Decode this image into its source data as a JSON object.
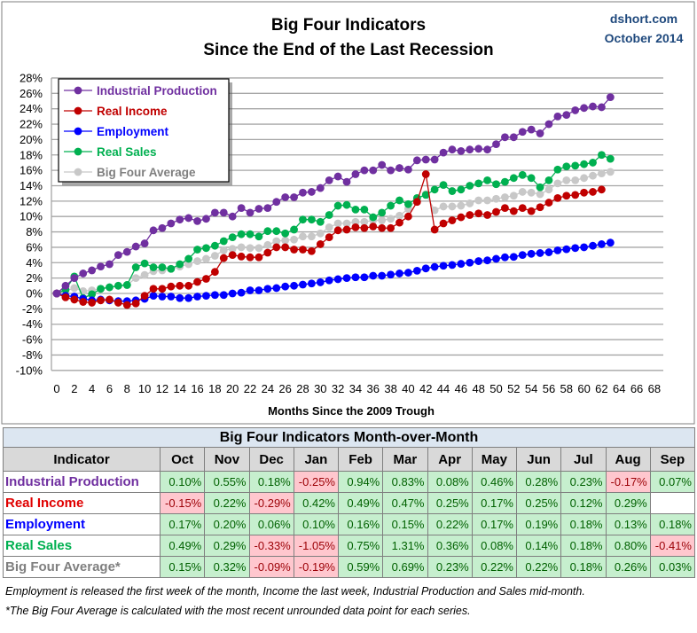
{
  "header": {
    "title_line1": "Big Four Indicators",
    "title_line2": "Since the End of the Last Recession",
    "source": "dshort.com",
    "date": "October 2014"
  },
  "colors": {
    "industrial_production": "#7030a0",
    "real_income": "#c00000",
    "employment": "#0000ff",
    "real_sales": "#00b050",
    "big_four_average": "#c8c8c8"
  },
  "chart_data": {
    "type": "line",
    "title": "Big Four Indicators Since the End of the Last Recession",
    "xlabel": "Months Since the 2009 Trough",
    "ylabel": "",
    "xlim": [
      0,
      68
    ],
    "ylim": [
      -10,
      28
    ],
    "x_ticks": [
      "0",
      "2",
      "4",
      "6",
      "8",
      "10",
      "12",
      "14",
      "16",
      "18",
      "20",
      "22",
      "24",
      "26",
      "28",
      "30",
      "32",
      "34",
      "36",
      "38",
      "40",
      "42",
      "44",
      "46",
      "48",
      "50",
      "52",
      "54",
      "56",
      "58",
      "60",
      "62",
      "64",
      "66",
      "68"
    ],
    "y_ticks": [
      "28%",
      "26%",
      "24%",
      "22%",
      "20%",
      "18%",
      "16%",
      "14%",
      "12%",
      "10%",
      "8%",
      "6%",
      "4%",
      "2%",
      "0%",
      "-2%",
      "-4%",
      "-6%",
      "-8%",
      "-10%"
    ],
    "grid": true,
    "legend_position": "top-left",
    "series": [
      {
        "name": "Industrial Production",
        "key": "industrial_production",
        "values": [
          0,
          1.0,
          2.0,
          2.6,
          3.0,
          3.5,
          3.8,
          5.0,
          5.4,
          6.1,
          6.5,
          8.2,
          8.5,
          9.1,
          9.6,
          9.8,
          9.4,
          9.7,
          10.5,
          10.5,
          10.0,
          11.1,
          10.5,
          11.0,
          11.1,
          11.9,
          12.5,
          12.5,
          13.1,
          13.2,
          13.7,
          14.7,
          15.2,
          14.5,
          15.5,
          16.0,
          16.0,
          16.7,
          16.0,
          16.3,
          16.1,
          17.3,
          17.4,
          17.4,
          18.3,
          18.7,
          18.5,
          18.7,
          18.8,
          18.7,
          19.4,
          20.3,
          20.3,
          21.0,
          21.3,
          20.8,
          22.0,
          23.0,
          23.2,
          23.8,
          24.1,
          24.3,
          24.2,
          25.5
        ]
      },
      {
        "name": "Real Income",
        "key": "real_income",
        "values": [
          0,
          -0.5,
          -0.8,
          -1.1,
          -1.2,
          -0.9,
          -0.8,
          -1.2,
          -1.5,
          -1.3,
          -0.3,
          0.6,
          0.6,
          0.9,
          1.0,
          1.0,
          1.5,
          1.9,
          2.8,
          4.6,
          5.0,
          4.8,
          4.7,
          4.7,
          5.3,
          6.0,
          6.0,
          5.7,
          5.7,
          5.5,
          6.4,
          7.3,
          8.2,
          8.3,
          8.6,
          8.5,
          8.7,
          8.5,
          8.5,
          9.2,
          10.0,
          11.9,
          15.5,
          8.3,
          9.1,
          9.5,
          9.9,
          10.2,
          10.4,
          10.2,
          10.6,
          11.1,
          10.7,
          11.1,
          10.7,
          11.2,
          11.8,
          12.4,
          12.7,
          12.8,
          13.1,
          13.2,
          13.5
        ]
      },
      {
        "name": "Employment",
        "key": "employment",
        "values": [
          0,
          -0.3,
          -0.4,
          -0.7,
          -0.9,
          -0.8,
          -0.9,
          -1.0,
          -1.0,
          -0.9,
          -0.7,
          -0.3,
          -0.4,
          -0.4,
          -0.6,
          -0.6,
          -0.4,
          -0.3,
          -0.2,
          -0.2,
          0.0,
          0.1,
          0.4,
          0.4,
          0.6,
          0.7,
          0.9,
          1.0,
          1.15,
          1.3,
          1.45,
          1.7,
          1.85,
          2.0,
          2.1,
          2.1,
          2.3,
          2.3,
          2.45,
          2.6,
          2.7,
          2.95,
          3.25,
          3.45,
          3.6,
          3.7,
          3.85,
          4.0,
          4.2,
          4.3,
          4.5,
          4.7,
          4.75,
          5.0,
          5.15,
          5.25,
          5.35,
          5.6,
          5.75,
          5.9,
          6.0,
          6.2,
          6.4,
          6.6
        ]
      },
      {
        "name": "Real Sales",
        "key": "real_sales",
        "values": [
          0,
          0.5,
          2.2,
          -0.6,
          -0.1,
          0.6,
          0.8,
          1.0,
          1.1,
          3.4,
          3.9,
          3.4,
          3.4,
          3.2,
          3.8,
          4.5,
          5.7,
          5.9,
          6.2,
          6.8,
          7.3,
          7.7,
          7.7,
          7.4,
          8.1,
          8.1,
          7.8,
          8.3,
          9.6,
          9.6,
          9.3,
          10.2,
          11.4,
          11.5,
          10.9,
          10.9,
          9.9,
          10.5,
          11.4,
          12.1,
          11.6,
          12.4,
          12.8,
          13.5,
          14.1,
          13.3,
          13.5,
          14.0,
          14.3,
          14.7,
          14.2,
          14.5,
          15.0,
          15.4,
          15.0,
          13.8,
          14.7,
          16.1,
          16.5,
          16.6,
          16.8,
          17.0,
          18.0,
          17.5
        ]
      },
      {
        "name": "Big Four Average",
        "key": "big_four_average",
        "values": [
          0,
          0.3,
          0.7,
          0.3,
          0.4,
          0.6,
          0.8,
          1.0,
          1.1,
          2.0,
          2.4,
          2.9,
          3.0,
          3.2,
          3.5,
          3.8,
          4.2,
          4.5,
          4.9,
          5.6,
          5.8,
          6.0,
          5.9,
          5.9,
          6.3,
          6.8,
          6.9,
          7.0,
          7.4,
          7.4,
          7.8,
          8.6,
          9.1,
          9.1,
          9.3,
          9.3,
          9.5,
          9.5,
          9.7,
          10.1,
          11.0,
          12.3,
          12.9,
          10.8,
          11.3,
          11.3,
          11.4,
          11.7,
          12.1,
          12.1,
          12.3,
          12.5,
          12.7,
          13.2,
          13.1,
          12.9,
          13.5,
          14.3,
          14.7,
          14.7,
          15.0,
          15.3,
          15.6,
          15.8
        ]
      }
    ]
  },
  "table": {
    "title": "Big Four Indicators Month-over-Month",
    "header": [
      "Indicator",
      "Oct",
      "Nov",
      "Dec",
      "Jan",
      "Feb",
      "Mar",
      "Apr",
      "May",
      "Jun",
      "Jul",
      "Aug",
      "Sep"
    ],
    "rows": [
      {
        "name": "Industrial Production",
        "color": "#7030a0",
        "values": [
          "0.10%",
          "0.55%",
          "0.18%",
          "-0.25%",
          "0.94%",
          "0.83%",
          "0.08%",
          "0.46%",
          "0.28%",
          "0.23%",
          "-0.17%",
          "0.07%"
        ]
      },
      {
        "name": "Real Income",
        "color": "#e00000",
        "values": [
          "-0.15%",
          "0.22%",
          "-0.29%",
          "0.42%",
          "0.49%",
          "0.47%",
          "0.25%",
          "0.17%",
          "0.25%",
          "0.12%",
          "0.29%",
          ""
        ]
      },
      {
        "name": "Employment",
        "color": "#0000ff",
        "values": [
          "0.17%",
          "0.20%",
          "0.06%",
          "0.10%",
          "0.16%",
          "0.15%",
          "0.22%",
          "0.17%",
          "0.19%",
          "0.18%",
          "0.13%",
          "0.18%"
        ]
      },
      {
        "name": "Real Sales",
        "color": "#00b050",
        "values": [
          "0.49%",
          "0.29%",
          "-0.33%",
          "-1.05%",
          "0.75%",
          "1.31%",
          "0.36%",
          "0.08%",
          "0.14%",
          "0.18%",
          "0.80%",
          "-0.41%"
        ]
      },
      {
        "name": "Big Four Average*",
        "color": "#7f7f7f",
        "values": [
          "0.15%",
          "0.32%",
          "-0.09%",
          "-0.19%",
          "0.59%",
          "0.69%",
          "0.23%",
          "0.22%",
          "0.22%",
          "0.18%",
          "0.26%",
          "0.03%"
        ]
      }
    ]
  },
  "footnotes": [
    "Employment is released the first week of the month, Income the last week, Industrial Production and Sales mid-month.",
    "*The Big Four Average is calculated with the most recent  unrounded data point for each series."
  ]
}
